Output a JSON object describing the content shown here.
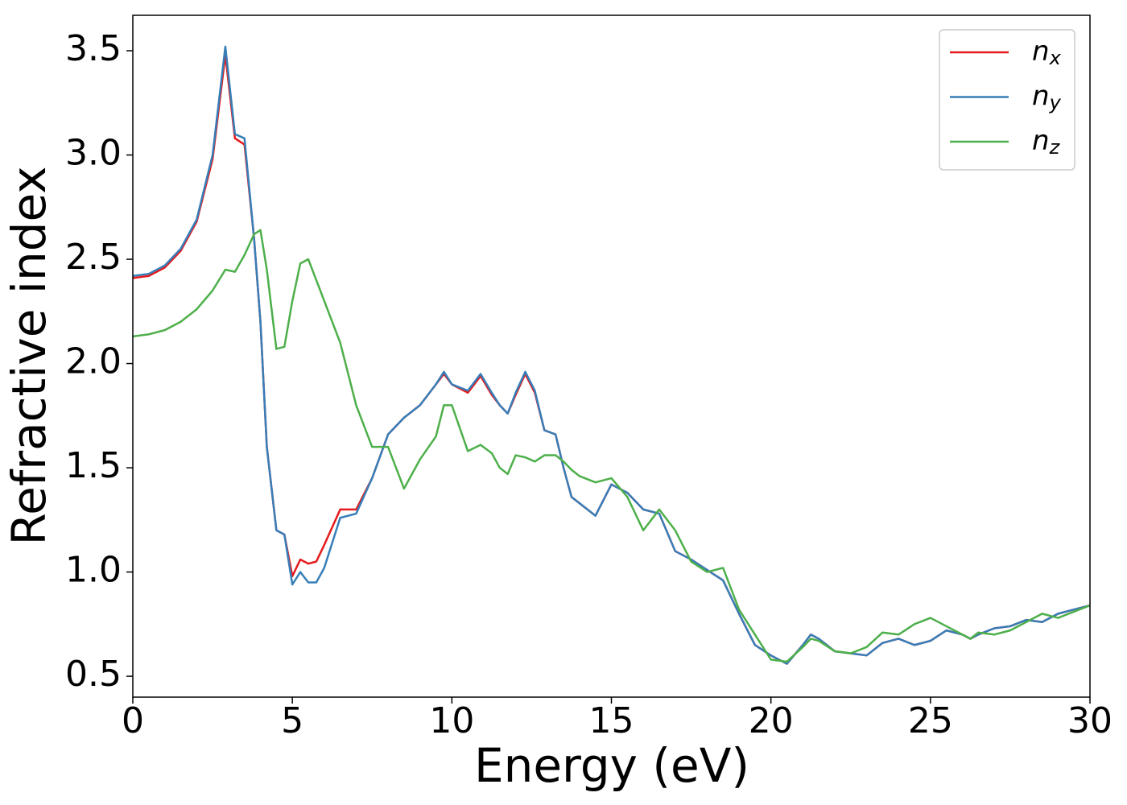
{
  "chart_data": {
    "type": "line",
    "x_label": "Energy (eV)",
    "y_label": "Refractive index",
    "xlim": [
      0,
      30
    ],
    "ylim": [
      0.4,
      3.67
    ],
    "xticks": [
      0,
      5,
      10,
      15,
      20,
      25,
      30
    ],
    "yticks": [
      0.5,
      {
        "value": 1,
        "label": "1.0"
      },
      1.5,
      {
        "value": 2,
        "label": "2.0"
      },
      2.5,
      {
        "value": 3,
        "label": "3.0"
      },
      3.5
    ],
    "legend": "upper right",
    "x": [
      0,
      0.5,
      1,
      1.5,
      2,
      2.5,
      2.9,
      3.2,
      3.5,
      3.8,
      4.0,
      4.2,
      4.5,
      4.75,
      5.0,
      5.25,
      5.5,
      5.75,
      6,
      6.5,
      7,
      7.5,
      8,
      8.5,
      9,
      9.5,
      9.75,
      10,
      10.5,
      10.9,
      11.25,
      11.5,
      11.75,
      12,
      12.3,
      12.6,
      12.9,
      13.25,
      13.5,
      13.75,
      14,
      14.5,
      15,
      15.5,
      16,
      16.5,
      17,
      17.5,
      18,
      18.5,
      19,
      19.5,
      20,
      20.5,
      21,
      21.25,
      21.5,
      22,
      22.5,
      23,
      23.5,
      24,
      24.5,
      25,
      25.5,
      26,
      26.25,
      26.5,
      27,
      27.5,
      28,
      28.5,
      29,
      29.5,
      30
    ],
    "series": [
      {
        "name": "nx",
        "color": "#e41a1c",
        "values": [
          2.41,
          2.42,
          2.46,
          2.54,
          2.68,
          2.98,
          3.48,
          3.08,
          3.05,
          2.6,
          2.2,
          1.6,
          1.2,
          1.18,
          0.98,
          1.06,
          1.04,
          1.05,
          1.13,
          1.3,
          1.3,
          1.45,
          1.66,
          1.74,
          1.8,
          1.9,
          1.95,
          1.9,
          1.86,
          1.94,
          1.85,
          1.8,
          1.76,
          1.85,
          1.95,
          1.86,
          1.68,
          1.66,
          1.5,
          1.36,
          1.33,
          1.27,
          1.42,
          1.38,
          1.3,
          1.28,
          1.1,
          1.06,
          1.01,
          0.96,
          0.8,
          0.65,
          0.6,
          0.56,
          0.65,
          0.7,
          0.68,
          0.62,
          0.61,
          0.6,
          0.66,
          0.68,
          0.65,
          0.67,
          0.72,
          0.7,
          0.68,
          0.7,
          0.73,
          0.74,
          0.77,
          0.76,
          0.8,
          0.82,
          0.84
        ]
      },
      {
        "name": "ny",
        "color": "#377eb8",
        "values": [
          2.42,
          2.43,
          2.47,
          2.55,
          2.69,
          3.0,
          3.52,
          3.1,
          3.08,
          2.6,
          2.2,
          1.6,
          1.2,
          1.18,
          0.94,
          1.0,
          0.95,
          0.95,
          1.02,
          1.26,
          1.28,
          1.45,
          1.66,
          1.74,
          1.8,
          1.9,
          1.96,
          1.9,
          1.87,
          1.95,
          1.86,
          1.8,
          1.76,
          1.86,
          1.96,
          1.87,
          1.68,
          1.66,
          1.5,
          1.36,
          1.33,
          1.27,
          1.42,
          1.38,
          1.3,
          1.28,
          1.1,
          1.06,
          1.01,
          0.96,
          0.8,
          0.65,
          0.6,
          0.56,
          0.65,
          0.7,
          0.68,
          0.62,
          0.61,
          0.6,
          0.66,
          0.68,
          0.65,
          0.67,
          0.72,
          0.7,
          0.68,
          0.7,
          0.73,
          0.74,
          0.77,
          0.76,
          0.8,
          0.82,
          0.84
        ]
      },
      {
        "name": "nz",
        "color": "#4daf4a",
        "values": [
          2.13,
          2.14,
          2.16,
          2.2,
          2.26,
          2.35,
          2.45,
          2.44,
          2.52,
          2.62,
          2.64,
          2.45,
          2.07,
          2.08,
          2.3,
          2.48,
          2.5,
          2.4,
          2.3,
          2.1,
          1.8,
          1.6,
          1.6,
          1.4,
          1.54,
          1.65,
          1.8,
          1.8,
          1.58,
          1.61,
          1.57,
          1.5,
          1.47,
          1.56,
          1.55,
          1.53,
          1.56,
          1.56,
          1.53,
          1.49,
          1.46,
          1.43,
          1.45,
          1.36,
          1.2,
          1.3,
          1.2,
          1.05,
          1.0,
          1.02,
          0.82,
          0.7,
          0.58,
          0.57,
          0.64,
          0.68,
          0.67,
          0.62,
          0.61,
          0.64,
          0.71,
          0.7,
          0.75,
          0.78,
          0.74,
          0.7,
          0.68,
          0.71,
          0.7,
          0.72,
          0.76,
          0.8,
          0.78,
          0.81,
          0.84
        ]
      }
    ]
  }
}
